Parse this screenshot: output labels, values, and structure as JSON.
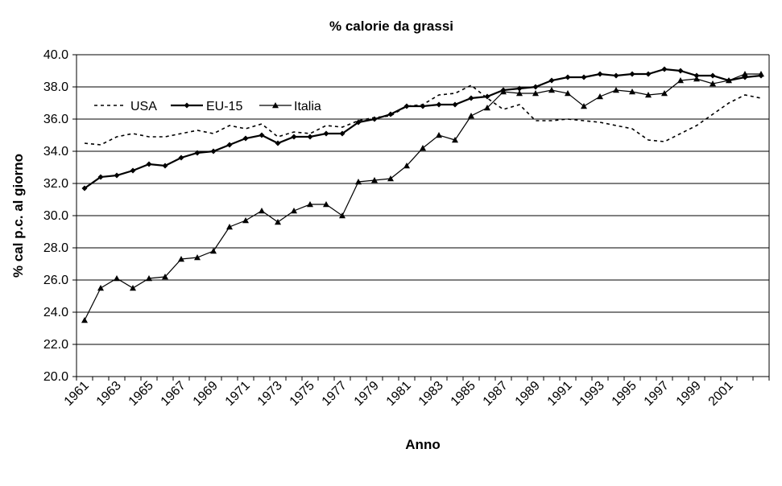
{
  "chart_data": {
    "type": "line",
    "title": "% calorie da grassi",
    "xlabel": "Anno",
    "ylabel": "% cal p.c. al giorno",
    "ylim": [
      20,
      40
    ],
    "yticks": [
      "20.0",
      "22.0",
      "24.0",
      "26.0",
      "28.0",
      "30.0",
      "32.0",
      "34.0",
      "36.0",
      "38.0",
      "40.0"
    ],
    "xlim": [
      1961,
      2003
    ],
    "xtick_labels": [
      "1961",
      "1963",
      "1965",
      "1967",
      "1969",
      "1971",
      "1973",
      "1975",
      "1977",
      "1979",
      "1981",
      "1983",
      "1985",
      "1987",
      "1989",
      "1991",
      "1993",
      "1995",
      "1997",
      "1999",
      "2001"
    ],
    "grid": "horizontal",
    "legend_position": "top-left",
    "x": [
      1961,
      1962,
      1963,
      1964,
      1965,
      1966,
      1967,
      1968,
      1969,
      1970,
      1971,
      1972,
      1973,
      1974,
      1975,
      1976,
      1977,
      1978,
      1979,
      1980,
      1981,
      1982,
      1983,
      1984,
      1985,
      1986,
      1987,
      1988,
      1989,
      1990,
      1991,
      1992,
      1993,
      1994,
      1995,
      1996,
      1997,
      1998,
      1999,
      2000,
      2001,
      2002,
      2003
    ],
    "series": [
      {
        "name": "USA",
        "style": "dotted",
        "color": "#000000",
        "values": [
          34.5,
          34.4,
          34.9,
          35.1,
          34.9,
          34.9,
          35.1,
          35.3,
          35.1,
          35.6,
          35.4,
          35.7,
          34.9,
          35.2,
          35.1,
          35.6,
          35.5,
          35.9,
          36.1,
          36.2,
          36.8,
          36.9,
          37.5,
          37.6,
          38.1,
          37.3,
          36.6,
          36.9,
          35.9,
          35.9,
          36.0,
          35.9,
          35.8,
          35.6,
          35.4,
          34.7,
          34.6,
          35.1,
          35.6,
          36.3,
          37.0,
          37.5,
          37.3
        ]
      },
      {
        "name": "EU-15",
        "style": "solid-thick",
        "marker": "diamond",
        "color": "#000000",
        "values": [
          31.7,
          32.4,
          32.5,
          32.8,
          33.2,
          33.1,
          33.6,
          33.9,
          34.0,
          34.4,
          34.8,
          35.0,
          34.5,
          34.9,
          34.9,
          35.1,
          35.1,
          35.8,
          36.0,
          36.3,
          36.8,
          36.8,
          36.9,
          36.9,
          37.3,
          37.4,
          37.8,
          37.9,
          38.0,
          38.4,
          38.6,
          38.6,
          38.8,
          38.7,
          38.8,
          38.8,
          39.1,
          39.0,
          38.7,
          38.7,
          38.4,
          38.6,
          38.7
        ]
      },
      {
        "name": "Italia",
        "style": "solid-thin",
        "marker": "triangle",
        "color": "#000000",
        "values": [
          23.5,
          25.5,
          26.1,
          25.5,
          26.1,
          26.2,
          27.3,
          27.4,
          27.8,
          29.3,
          29.7,
          30.3,
          29.6,
          30.3,
          30.7,
          30.7,
          30.0,
          32.1,
          32.2,
          32.3,
          33.1,
          34.2,
          35.0,
          34.7,
          36.2,
          36.7,
          37.7,
          37.6,
          37.6,
          37.8,
          37.6,
          36.8,
          37.4,
          37.8,
          37.7,
          37.5,
          37.6,
          38.4,
          38.5,
          38.2,
          38.4,
          38.8,
          38.8
        ]
      }
    ]
  }
}
